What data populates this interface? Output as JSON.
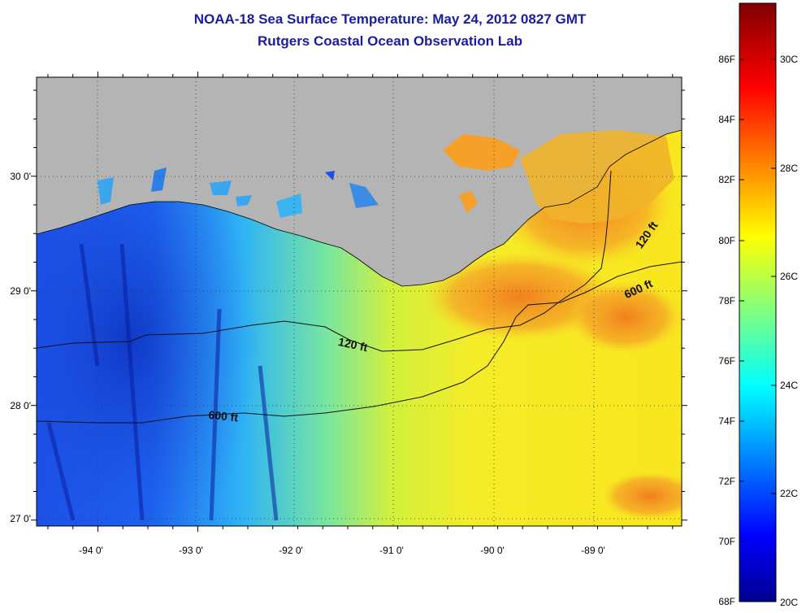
{
  "title": {
    "line1": "NOAA-18 Sea Surface Temperature:  May 24, 2012 0827 GMT",
    "line2": "Rutgers Coastal Ocean Observation Lab"
  },
  "map": {
    "lon_labels": [
      "-94 0'",
      "-93 0'",
      "-92 0'",
      "-91 0'",
      "-90 0'",
      "-89 0'"
    ],
    "lat_labels": [
      "30 0'",
      "29 0'",
      "28 0'",
      "27 0'"
    ],
    "contour_labels": [
      {
        "text": "120 ft"
      },
      {
        "text": "600 ft"
      },
      {
        "text": "120 ft"
      },
      {
        "text": "600 ft"
      }
    ],
    "land_color": "#b4b4b4"
  },
  "colorbar": {
    "fahrenheit_labels": [
      "86F",
      "84F",
      "82F",
      "80F",
      "78F",
      "76F",
      "74F",
      "72F",
      "70F",
      "68F"
    ],
    "celsius_labels": [
      "30C",
      "28C",
      "26C",
      "24C",
      "22C",
      "20C"
    ],
    "colormap": "jet",
    "range_c": [
      20,
      31.5
    ]
  }
}
